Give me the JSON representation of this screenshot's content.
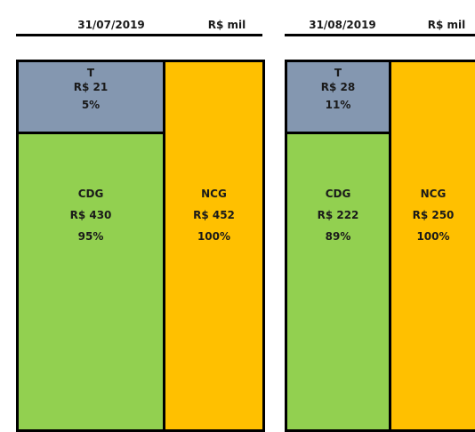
{
  "panels": [
    {
      "date": "31/07/2019",
      "unit": "R$ mil",
      "t": {
        "label": "T",
        "value": "R$ 21",
        "percent": "5%"
      },
      "cdg": {
        "label": "CDG",
        "value": "R$ 430",
        "percent": "95%"
      },
      "ncg": {
        "label": "NCG",
        "value": "R$ 452",
        "percent": "100%"
      }
    },
    {
      "date": "31/08/2019",
      "unit": "R$ mil",
      "t": {
        "label": "T",
        "value": "R$ 28",
        "percent": "11%"
      },
      "cdg": {
        "label": "CDG",
        "value": "R$ 222",
        "percent": "89%"
      },
      "ncg": {
        "label": "NCG",
        "value": "R$ 250",
        "percent": "100%"
      }
    }
  ]
}
